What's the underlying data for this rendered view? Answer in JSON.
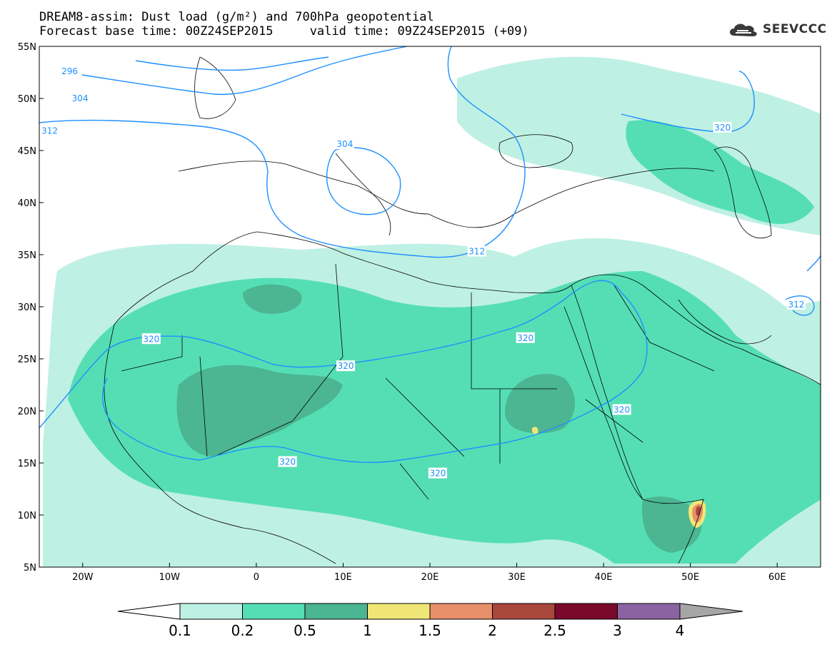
{
  "header": {
    "title_line1": "DREAM8-assim: Dust load (g/m²) and 700hPa geopotential",
    "title_line2": "Forecast base time: 00Z24SEP2015     valid time: 09Z24SEP2015 (+09)",
    "logo_text": "SEEVCCC"
  },
  "map": {
    "lon_range": [
      -25,
      65
    ],
    "lat_range": [
      5,
      55
    ],
    "lon_ticks": [
      "20W",
      "10W",
      "0",
      "10E",
      "20E",
      "30E",
      "40E",
      "50E",
      "60E"
    ],
    "lat_ticks": [
      "55N",
      "50N",
      "45N",
      "40N",
      "35N",
      "30N",
      "25N",
      "20N",
      "15N",
      "10N",
      "5N"
    ],
    "contour_color": "#1e90ff",
    "contour_labels": [
      {
        "text": "296",
        "lon": -21.5,
        "lat": 52.6
      },
      {
        "text": "304",
        "lon": -20.3,
        "lat": 50.0
      },
      {
        "text": "312",
        "lon": -23.8,
        "lat": 46.9
      },
      {
        "text": "304",
        "lon": 10.2,
        "lat": 45.6
      },
      {
        "text": "312",
        "lon": 25.4,
        "lat": 35.3
      },
      {
        "text": "320",
        "lon": -12.1,
        "lat": 26.9
      },
      {
        "text": "320",
        "lon": 10.3,
        "lat": 24.3
      },
      {
        "text": "320",
        "lon": 31.0,
        "lat": 27.0
      },
      {
        "text": "320",
        "lon": 42.1,
        "lat": 20.1
      },
      {
        "text": "320",
        "lon": 3.6,
        "lat": 15.1
      },
      {
        "text": "320",
        "lon": 20.9,
        "lat": 14.0
      },
      {
        "text": "320",
        "lon": 53.7,
        "lat": 47.2
      },
      {
        "text": "312",
        "lon": 62.2,
        "lat": 30.2
      }
    ]
  },
  "colorbar": {
    "labels": [
      "0.1",
      "0.2",
      "0.5",
      "1",
      "1.5",
      "2",
      "2.5",
      "3",
      "4"
    ],
    "colors": [
      "#bff0e4",
      "#55deb4",
      "#4cb591",
      "#f0e676",
      "#e8906a",
      "#a8473c",
      "#7a0a2c",
      "#8a63a0"
    ],
    "under_color": "#ffffff",
    "over_color": "#a6a6a6"
  },
  "dust_colors": {
    "low": "#bff0e4",
    "mid": "#55deb4",
    "high": "#4cb591",
    "very_high": "#f0e676",
    "extreme": "#e8906a",
    "peak": "#a8473c"
  }
}
